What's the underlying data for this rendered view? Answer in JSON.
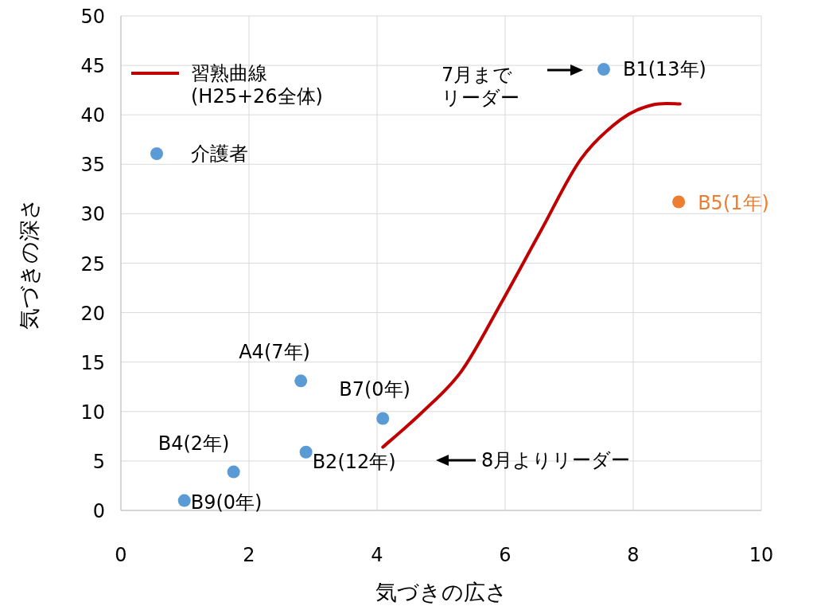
{
  "chart_data": {
    "type": "scatter",
    "xlabel": "気づきの広さ",
    "ylabel": "気づきの深さ",
    "xlim": [
      0,
      10
    ],
    "xticks": [
      0,
      2,
      4,
      6,
      8,
      10
    ],
    "ylim": [
      0,
      50
    ],
    "yticks": [
      0,
      5,
      10,
      15,
      20,
      25,
      30,
      35,
      40,
      45,
      50
    ],
    "grid": true,
    "legend": "top left",
    "series": [
      {
        "name": "習熟曲線\n(H25+26全体)",
        "type": "line",
        "color": "#c00000",
        "x": [
          4.09,
          4.7,
          5.32,
          5.94,
          6.56,
          7.18,
          7.8,
          8.3,
          8.73
        ],
        "values": [
          6.4,
          9.9,
          14.1,
          21.0,
          28.3,
          35.5,
          39.5,
          41.0,
          41.1
        ]
      },
      {
        "name": "介護者",
        "type": "scatter",
        "color": "#5b9bd5",
        "marker": "circle",
        "x": [
          2.81,
          4.09,
          2.89,
          1.76,
          0.99,
          7.54,
          8.71
        ],
        "values": [
          13.1,
          9.3,
          5.9,
          3.9,
          1.0,
          44.6,
          31.2
        ],
        "colors": [
          "#5b9bd5",
          "#5b9bd5",
          "#5b9bd5",
          "#5b9bd5",
          "#5b9bd5",
          "#5b9bd5",
          "#ed7d31"
        ],
        "value_labels": [
          "A4(7年)",
          "B7(0年)",
          "B2(12年)",
          "B4(2年)",
          "B9(0年)",
          "B1(13年)",
          "B5(1年)"
        ]
      }
    ],
    "annotations": [
      "7月までリーダー",
      "8月よりリーダー"
    ]
  }
}
